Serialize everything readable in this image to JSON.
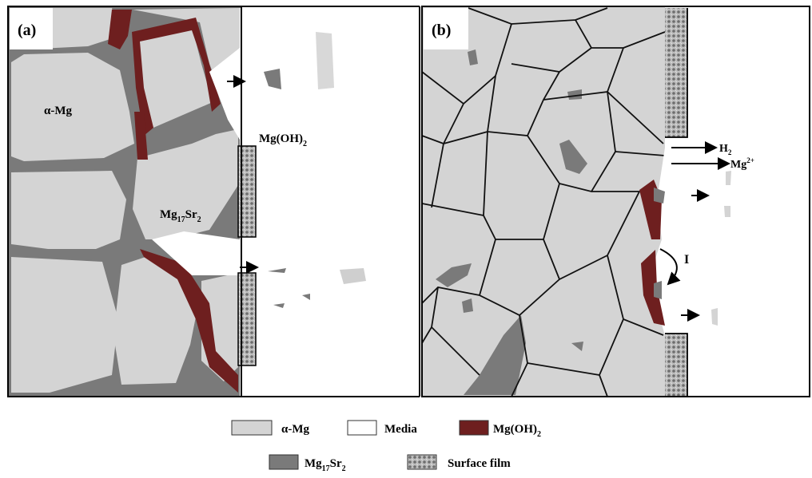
{
  "panels": [
    {
      "tag": "(a)",
      "alpha_mg": "α-Mg",
      "mg17sr2": [
        "Mg",
        "17",
        "Sr",
        "2"
      ],
      "mgoh2": [
        "Mg(OH)",
        "2"
      ]
    },
    {
      "tag": "(b)",
      "h2": [
        "H",
        "2"
      ],
      "mg2": [
        "Mg",
        "2+"
      ],
      "step": "I"
    }
  ],
  "legend": [
    {
      "label": [
        "α-Mg"
      ]
    },
    {
      "label": [
        "Media"
      ]
    },
    {
      "label": [
        "Mg(OH)",
        "2"
      ]
    },
    {
      "label": [
        "Mg",
        "17",
        "Sr",
        "2"
      ]
    },
    {
      "label": [
        "Surface film"
      ]
    }
  ]
}
